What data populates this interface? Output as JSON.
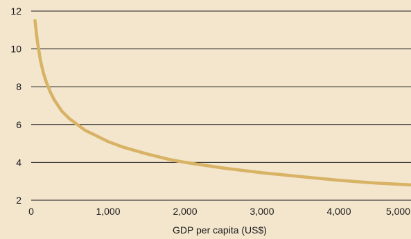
{
  "chart_data": {
    "type": "line",
    "xlabel": "GDP per capita (US$)",
    "ylabel": "",
    "xlim": [
      0,
      5000
    ],
    "ylim": [
      2,
      12
    ],
    "x_ticks": [
      0,
      1000,
      2000,
      3000,
      4000,
      5000
    ],
    "x_tick_labels": [
      "0",
      "1,000",
      "2,000",
      "3,000",
      "4,000",
      "5,000"
    ],
    "y_ticks": [
      2,
      4,
      6,
      8,
      10,
      12
    ],
    "y_tick_labels": [
      "2",
      "4",
      "6",
      "8",
      "10",
      "12"
    ],
    "grid": "horizontal",
    "legend": "none",
    "series": [
      {
        "color": "#d8b265",
        "x": [
          50,
          80,
          120,
          160,
          200,
          250,
          300,
          400,
          500,
          600,
          700,
          800,
          1000,
          1200,
          1500,
          1800,
          2000,
          2500,
          3000,
          3500,
          4000,
          4500,
          5000,
          5400
        ],
        "y": [
          11.5,
          10.4,
          9.4,
          8.7,
          8.2,
          7.7,
          7.3,
          6.7,
          6.3,
          6.0,
          5.7,
          5.5,
          5.1,
          4.8,
          4.45,
          4.15,
          4.0,
          3.7,
          3.45,
          3.25,
          3.05,
          2.9,
          2.8,
          2.75
        ]
      }
    ],
    "colors": {
      "background": "#f3e6cd",
      "gridline": "#1a1a1a",
      "text": "#1a1a1a"
    }
  }
}
